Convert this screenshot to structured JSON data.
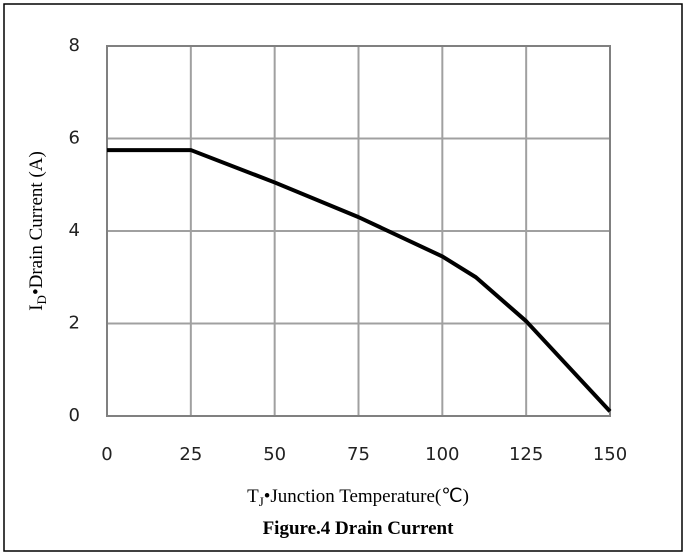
{
  "chart_data": {
    "type": "line",
    "x": [
      0,
      25,
      50,
      75,
      100,
      110,
      125,
      150
    ],
    "values": [
      5.75,
      5.75,
      5.05,
      4.3,
      3.45,
      3.0,
      2.05,
      0.1
    ],
    "color": "#000000",
    "xlim": [
      0,
      150
    ],
    "xticks": [
      0,
      25,
      50,
      75,
      100,
      125,
      150
    ],
    "ylim": [
      0,
      8
    ],
    "yticks": [
      0,
      2,
      4,
      6,
      8
    ],
    "grid": true,
    "xlabel_parts": [
      "T",
      "J",
      "•Junction Temperature(℃)"
    ],
    "ylabel_parts": [
      "I",
      "D",
      "•Drain Current (A)"
    ],
    "caption": "Figure.4 Drain Current"
  }
}
